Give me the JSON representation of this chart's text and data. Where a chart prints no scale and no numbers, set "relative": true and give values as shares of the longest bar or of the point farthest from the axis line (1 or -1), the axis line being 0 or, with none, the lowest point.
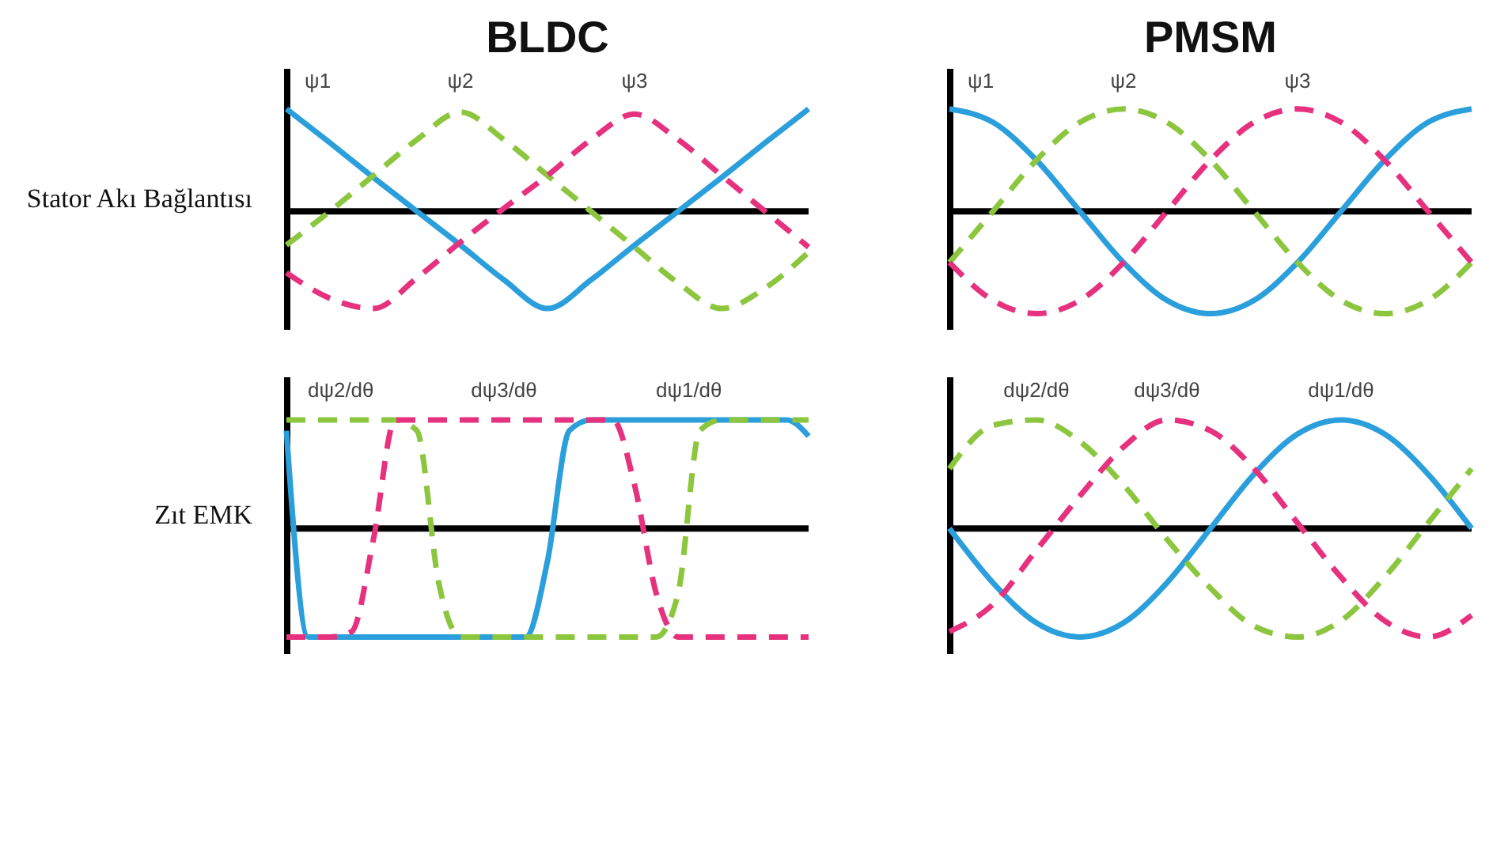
{
  "chart_data": [
    {
      "type": "line",
      "title": "BLDC",
      "ylabel": "Stator Akı Bağlantısı",
      "relative": true,
      "categories": [
        null,
        null,
        null,
        null,
        null,
        null,
        null,
        null,
        null,
        null,
        null,
        null,
        null
      ],
      "series": [
        {
          "name": "ψ1",
          "color": "#2b9fdc",
          "line_style": "solid",
          "values": [
            1,
            0.67,
            0.33,
            0,
            -0.33,
            -0.67,
            -0.95,
            -0.67,
            -0.33,
            0,
            0.33,
            0.67,
            1
          ]
        },
        {
          "name": "ψ2",
          "color": "#8cc63e",
          "line_style": "dashed",
          "values": [
            -0.33,
            0,
            0.35,
            0.7,
            0.97,
            0.7,
            0.35,
            0,
            -0.35,
            -0.7,
            -0.95,
            -0.75,
            -0.4
          ]
        },
        {
          "name": "ψ3",
          "color": "#e6317f",
          "line_style": "dashed",
          "values": [
            -0.6,
            -0.85,
            -0.95,
            -0.65,
            -0.3,
            0.03,
            0.35,
            0.7,
            0.95,
            0.7,
            0.35,
            0,
            -0.35
          ]
        }
      ]
    },
    {
      "type": "line",
      "title": "PMSM",
      "relative": true,
      "categories": [
        null,
        null,
        null,
        null,
        null,
        null,
        null,
        null,
        null,
        null,
        null,
        null,
        null
      ],
      "series": [
        {
          "name": "ψ1",
          "color": "#2b9fdc",
          "line_style": "solid",
          "values": [
            1,
            0.87,
            0.5,
            0,
            -0.5,
            -0.87,
            -1,
            -0.87,
            -0.5,
            0,
            0.5,
            0.87,
            1
          ]
        },
        {
          "name": "ψ2",
          "color": "#8cc63e",
          "line_style": "dashed",
          "values": [
            -0.5,
            0,
            0.5,
            0.87,
            1,
            0.87,
            0.5,
            0,
            -0.5,
            -0.87,
            -1,
            -0.87,
            -0.5
          ]
        },
        {
          "name": "ψ3",
          "color": "#e6317f",
          "line_style": "dashed",
          "values": [
            -0.5,
            -0.87,
            -1,
            -0.87,
            -0.5,
            0,
            0.5,
            0.87,
            1,
            0.87,
            0.5,
            0,
            -0.5
          ]
        }
      ]
    },
    {
      "type": "line",
      "ylabel": "Zıt EMK",
      "relative": true,
      "categories": [
        null,
        null,
        null,
        null,
        null,
        null,
        null,
        null,
        null,
        null,
        null,
        null,
        null,
        null,
        null,
        null,
        null,
        null,
        null,
        null,
        null,
        null,
        null,
        null,
        null
      ],
      "series": [
        {
          "name": "dψ1/dθ",
          "color": "#2b9fdc",
          "line_style": "solid",
          "values": [
            0.9,
            -1,
            -1,
            -1,
            -1,
            -1,
            -1,
            -1,
            -1,
            -1,
            -1,
            -1,
            -0.3,
            0.9,
            1,
            1,
            1,
            1,
            1,
            1,
            1,
            1,
            1,
            1,
            0.85
          ]
        },
        {
          "name": "dψ2/dθ",
          "color": "#8cc63e",
          "line_style": "dashed",
          "values": [
            1,
            1,
            1,
            1,
            1,
            1,
            0.9,
            -0.5,
            -1,
            -1,
            -1,
            -1,
            -1,
            -1,
            -1,
            -1,
            -1,
            -1,
            -0.6,
            0.9,
            1,
            1,
            1,
            1,
            1
          ]
        },
        {
          "name": "dψ3/dθ",
          "color": "#e6317f",
          "line_style": "dashed",
          "values": [
            -1,
            -1,
            -1,
            -0.95,
            -0.1,
            1,
            1,
            1,
            1,
            1,
            1,
            1,
            1,
            1,
            1,
            1,
            0.4,
            -0.6,
            -1,
            -1,
            -1,
            -1,
            -1,
            -1,
            -1
          ]
        }
      ]
    },
    {
      "type": "line",
      "relative": true,
      "categories": [
        null,
        null,
        null,
        null,
        null,
        null,
        null,
        null,
        null,
        null,
        null,
        null,
        null
      ],
      "series": [
        {
          "name": "dψ1/dθ",
          "color": "#2b9fdc",
          "line_style": "solid",
          "values": [
            0,
            -0.5,
            -0.87,
            -1,
            -0.87,
            -0.5,
            0,
            0.5,
            0.87,
            1,
            0.87,
            0.5,
            0
          ]
        },
        {
          "name": "dψ2/dθ",
          "color": "#8cc63e",
          "line_style": "dashed",
          "values": [
            0.55,
            0.95,
            1,
            0.8,
            0.4,
            -0.1,
            -0.55,
            -0.9,
            -1,
            -0.85,
            -0.45,
            0.05,
            0.55
          ]
        },
        {
          "name": "dψ3/dθ",
          "color": "#e6317f",
          "line_style": "dashed",
          "values": [
            -0.95,
            -0.7,
            -0.2,
            0.3,
            0.75,
            1,
            0.9,
            0.55,
            0.05,
            -0.45,
            -0.85,
            -1,
            -0.8
          ]
        }
      ]
    }
  ]
}
